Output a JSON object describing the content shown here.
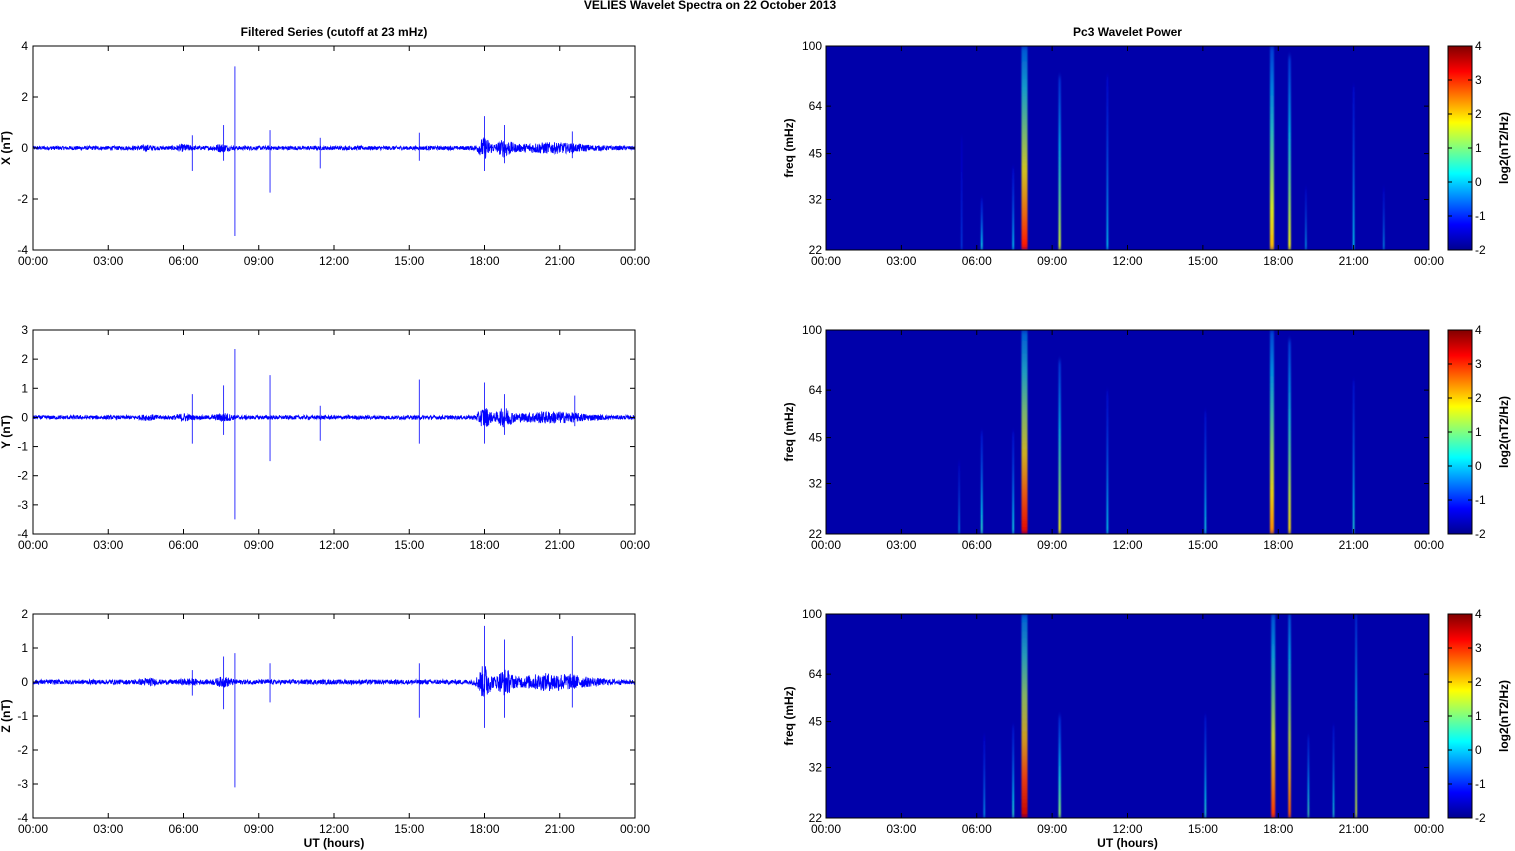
{
  "figure": {
    "title": "VELIES Wavelet Spectra on 22 October   2013"
  },
  "chart_data": [
    {
      "id": "ts-x",
      "type": "line",
      "title": "Filtered Series (cutoff at 23 mHz)",
      "xlabel": "",
      "ylabel": "X (nT)",
      "xticks": [
        "00:00",
        "03:00",
        "06:00",
        "09:00",
        "12:00",
        "15:00",
        "18:00",
        "21:00",
        "00:00"
      ],
      "yticks": [
        "-4",
        "-2",
        "0",
        "2",
        "4"
      ],
      "xlim": [
        0,
        24
      ],
      "ylim": [
        -4,
        4
      ],
      "color": "#0000ff",
      "noise": 0.08,
      "bursts": [
        [
          4.5,
          0.06,
          0.3
        ],
        [
          6.0,
          0.08,
          0.3
        ],
        [
          7.5,
          0.1,
          0.3
        ],
        [
          18.0,
          0.35,
          0.25
        ],
        [
          18.8,
          0.25,
          0.3
        ],
        [
          20.6,
          0.15,
          1.5
        ]
      ],
      "spikes": [
        [
          6.35,
          0.5,
          -0.9
        ],
        [
          7.6,
          0.9,
          -0.5
        ],
        [
          8.05,
          3.2,
          -3.45
        ],
        [
          9.45,
          0.7,
          -1.75
        ],
        [
          11.45,
          0.4,
          -0.8
        ],
        [
          15.4,
          0.6,
          -0.5
        ],
        [
          18.0,
          1.25,
          -0.9
        ],
        [
          18.8,
          0.9,
          -0.6
        ],
        [
          21.5,
          0.65,
          -0.4
        ]
      ]
    },
    {
      "id": "ts-y",
      "type": "line",
      "title": "",
      "xlabel": "",
      "ylabel": "Y (nT)",
      "xticks": [
        "00:00",
        "03:00",
        "06:00",
        "09:00",
        "12:00",
        "15:00",
        "18:00",
        "21:00",
        "00:00"
      ],
      "yticks": [
        "-4",
        "-3",
        "-2",
        "-1",
        "0",
        "1",
        "2",
        "3"
      ],
      "xlim": [
        0,
        24
      ],
      "ylim": [
        -4,
        3
      ],
      "color": "#0000ff",
      "noise": 0.07,
      "bursts": [
        [
          4.6,
          0.05,
          0.3
        ],
        [
          6.0,
          0.08,
          0.3
        ],
        [
          7.6,
          0.1,
          0.3
        ],
        [
          18.0,
          0.3,
          0.25
        ],
        [
          18.8,
          0.25,
          0.3
        ],
        [
          20.6,
          0.15,
          1.5
        ]
      ],
      "spikes": [
        [
          6.35,
          0.8,
          -0.9
        ],
        [
          7.6,
          1.1,
          -0.6
        ],
        [
          8.05,
          2.35,
          -3.5
        ],
        [
          9.45,
          1.45,
          -1.5
        ],
        [
          11.45,
          0.4,
          -0.8
        ],
        [
          15.4,
          1.3,
          -0.9
        ],
        [
          18.0,
          1.2,
          -0.9
        ],
        [
          18.8,
          0.8,
          -0.6
        ],
        [
          21.6,
          0.75,
          -0.3
        ]
      ]
    },
    {
      "id": "ts-z",
      "type": "line",
      "title": "",
      "xlabel": "UT (hours)",
      "ylabel": "Z (nT)",
      "xticks": [
        "00:00",
        "03:00",
        "06:00",
        "09:00",
        "12:00",
        "15:00",
        "18:00",
        "21:00",
        "00:00"
      ],
      "yticks": [
        "-4",
        "-3",
        "-2",
        "-1",
        "0",
        "1",
        "2"
      ],
      "xlim": [
        0,
        24
      ],
      "ylim": [
        -4,
        2
      ],
      "color": "#0000ff",
      "noise": 0.07,
      "bursts": [
        [
          4.6,
          0.06,
          0.3
        ],
        [
          6.2,
          0.05,
          0.3
        ],
        [
          7.6,
          0.1,
          0.3
        ],
        [
          18.0,
          0.45,
          0.25
        ],
        [
          18.8,
          0.3,
          0.3
        ],
        [
          20.7,
          0.2,
          1.5
        ]
      ],
      "spikes": [
        [
          6.35,
          0.35,
          -0.4
        ],
        [
          7.6,
          0.75,
          -0.8
        ],
        [
          8.05,
          0.85,
          -3.1
        ],
        [
          9.45,
          0.55,
          -0.6
        ],
        [
          15.4,
          0.55,
          -1.05
        ],
        [
          18.0,
          1.65,
          -1.35
        ],
        [
          18.8,
          1.25,
          -1.05
        ],
        [
          21.5,
          1.35,
          -0.75
        ]
      ]
    },
    {
      "id": "wv-1",
      "type": "heatmap",
      "title": "Pc3 Wavelet Power",
      "xlabel": "",
      "ylabel": "freq (mHz)",
      "xticks": [
        "00:00",
        "03:00",
        "06:00",
        "09:00",
        "12:00",
        "15:00",
        "18:00",
        "21:00",
        "00:00"
      ],
      "yticks": [
        "22",
        "32",
        "45",
        "64",
        "100"
      ],
      "xlim": [
        0,
        24
      ],
      "ylim": [
        22,
        100
      ],
      "yscale": "log",
      "colorbar": {
        "label": "log2(nT2/Hz)",
        "ticks": [
          "-2",
          "-1",
          "0",
          "1",
          "2",
          "3",
          "4"
        ],
        "range": [
          -2,
          4
        ]
      },
      "streaks": [
        [
          5.4,
          0.9,
          0.55,
          -0.6
        ],
        [
          6.2,
          1.6,
          0.25,
          0.4
        ],
        [
          7.45,
          1.5,
          0.4,
          0.2
        ],
        [
          7.9,
          6.0,
          1.0,
          3.2
        ],
        [
          9.3,
          2.2,
          0.85,
          1.6
        ],
        [
          11.2,
          1.4,
          0.85,
          0.2
        ],
        [
          17.75,
          4.0,
          1.0,
          2.2
        ],
        [
          18.45,
          2.5,
          0.95,
          1.8
        ],
        [
          19.1,
          1.0,
          0.3,
          0.2
        ],
        [
          21.0,
          1.4,
          0.8,
          0.3
        ],
        [
          22.2,
          1.0,
          0.3,
          0.1
        ]
      ]
    },
    {
      "id": "wv-2",
      "type": "heatmap",
      "title": "",
      "xlabel": "",
      "ylabel": "freq (mHz)",
      "xticks": [
        "00:00",
        "03:00",
        "06:00",
        "09:00",
        "12:00",
        "15:00",
        "18:00",
        "21:00",
        "00:00"
      ],
      "yticks": [
        "22",
        "32",
        "45",
        "64",
        "100"
      ],
      "xlim": [
        0,
        24
      ],
      "ylim": [
        22,
        100
      ],
      "yscale": "log",
      "colorbar": {
        "label": "log2(nT2/Hz)",
        "ticks": [
          "-2",
          "-1",
          "0",
          "1",
          "2",
          "3",
          "4"
        ],
        "range": [
          -2,
          4
        ]
      },
      "streaks": [
        [
          5.3,
          0.9,
          0.35,
          0.1
        ],
        [
          6.2,
          1.6,
          0.5,
          0.6
        ],
        [
          7.45,
          1.5,
          0.5,
          0.4
        ],
        [
          7.9,
          6.0,
          1.0,
          3.4
        ],
        [
          9.3,
          2.2,
          0.85,
          1.8
        ],
        [
          11.2,
          1.4,
          0.7,
          0.3
        ],
        [
          15.1,
          1.4,
          0.6,
          0.4
        ],
        [
          17.75,
          4.0,
          1.0,
          2.5
        ],
        [
          18.45,
          2.5,
          0.95,
          2.0
        ],
        [
          21.0,
          1.4,
          0.75,
          0.5
        ]
      ]
    },
    {
      "id": "wv-3",
      "type": "heatmap",
      "title": "",
      "xlabel": "UT (hours)",
      "ylabel": "freq (mHz)",
      "xticks": [
        "00:00",
        "03:00",
        "06:00",
        "09:00",
        "12:00",
        "15:00",
        "18:00",
        "21:00",
        "00:00"
      ],
      "yticks": [
        "22",
        "32",
        "45",
        "64",
        "100"
      ],
      "xlim": [
        0,
        24
      ],
      "ylim": [
        22,
        100
      ],
      "yscale": "log",
      "colorbar": {
        "label": "log2(nT2/Hz)",
        "ticks": [
          "-2",
          "-1",
          "0",
          "1",
          "2",
          "3",
          "4"
        ],
        "range": [
          -2,
          4
        ]
      },
      "streaks": [
        [
          6.3,
          1.2,
          0.4,
          0.0
        ],
        [
          7.45,
          1.5,
          0.45,
          0.6
        ],
        [
          7.9,
          6.0,
          1.0,
          3.6
        ],
        [
          9.3,
          2.2,
          0.5,
          1.2
        ],
        [
          15.1,
          1.4,
          0.5,
          0.6
        ],
        [
          17.8,
          4.0,
          1.0,
          3.0
        ],
        [
          18.45,
          2.6,
          1.0,
          2.8
        ],
        [
          19.2,
          1.3,
          0.4,
          0.8
        ],
        [
          20.2,
          1.2,
          0.45,
          0.5
        ],
        [
          21.1,
          1.6,
          1.0,
          1.6
        ]
      ]
    }
  ]
}
